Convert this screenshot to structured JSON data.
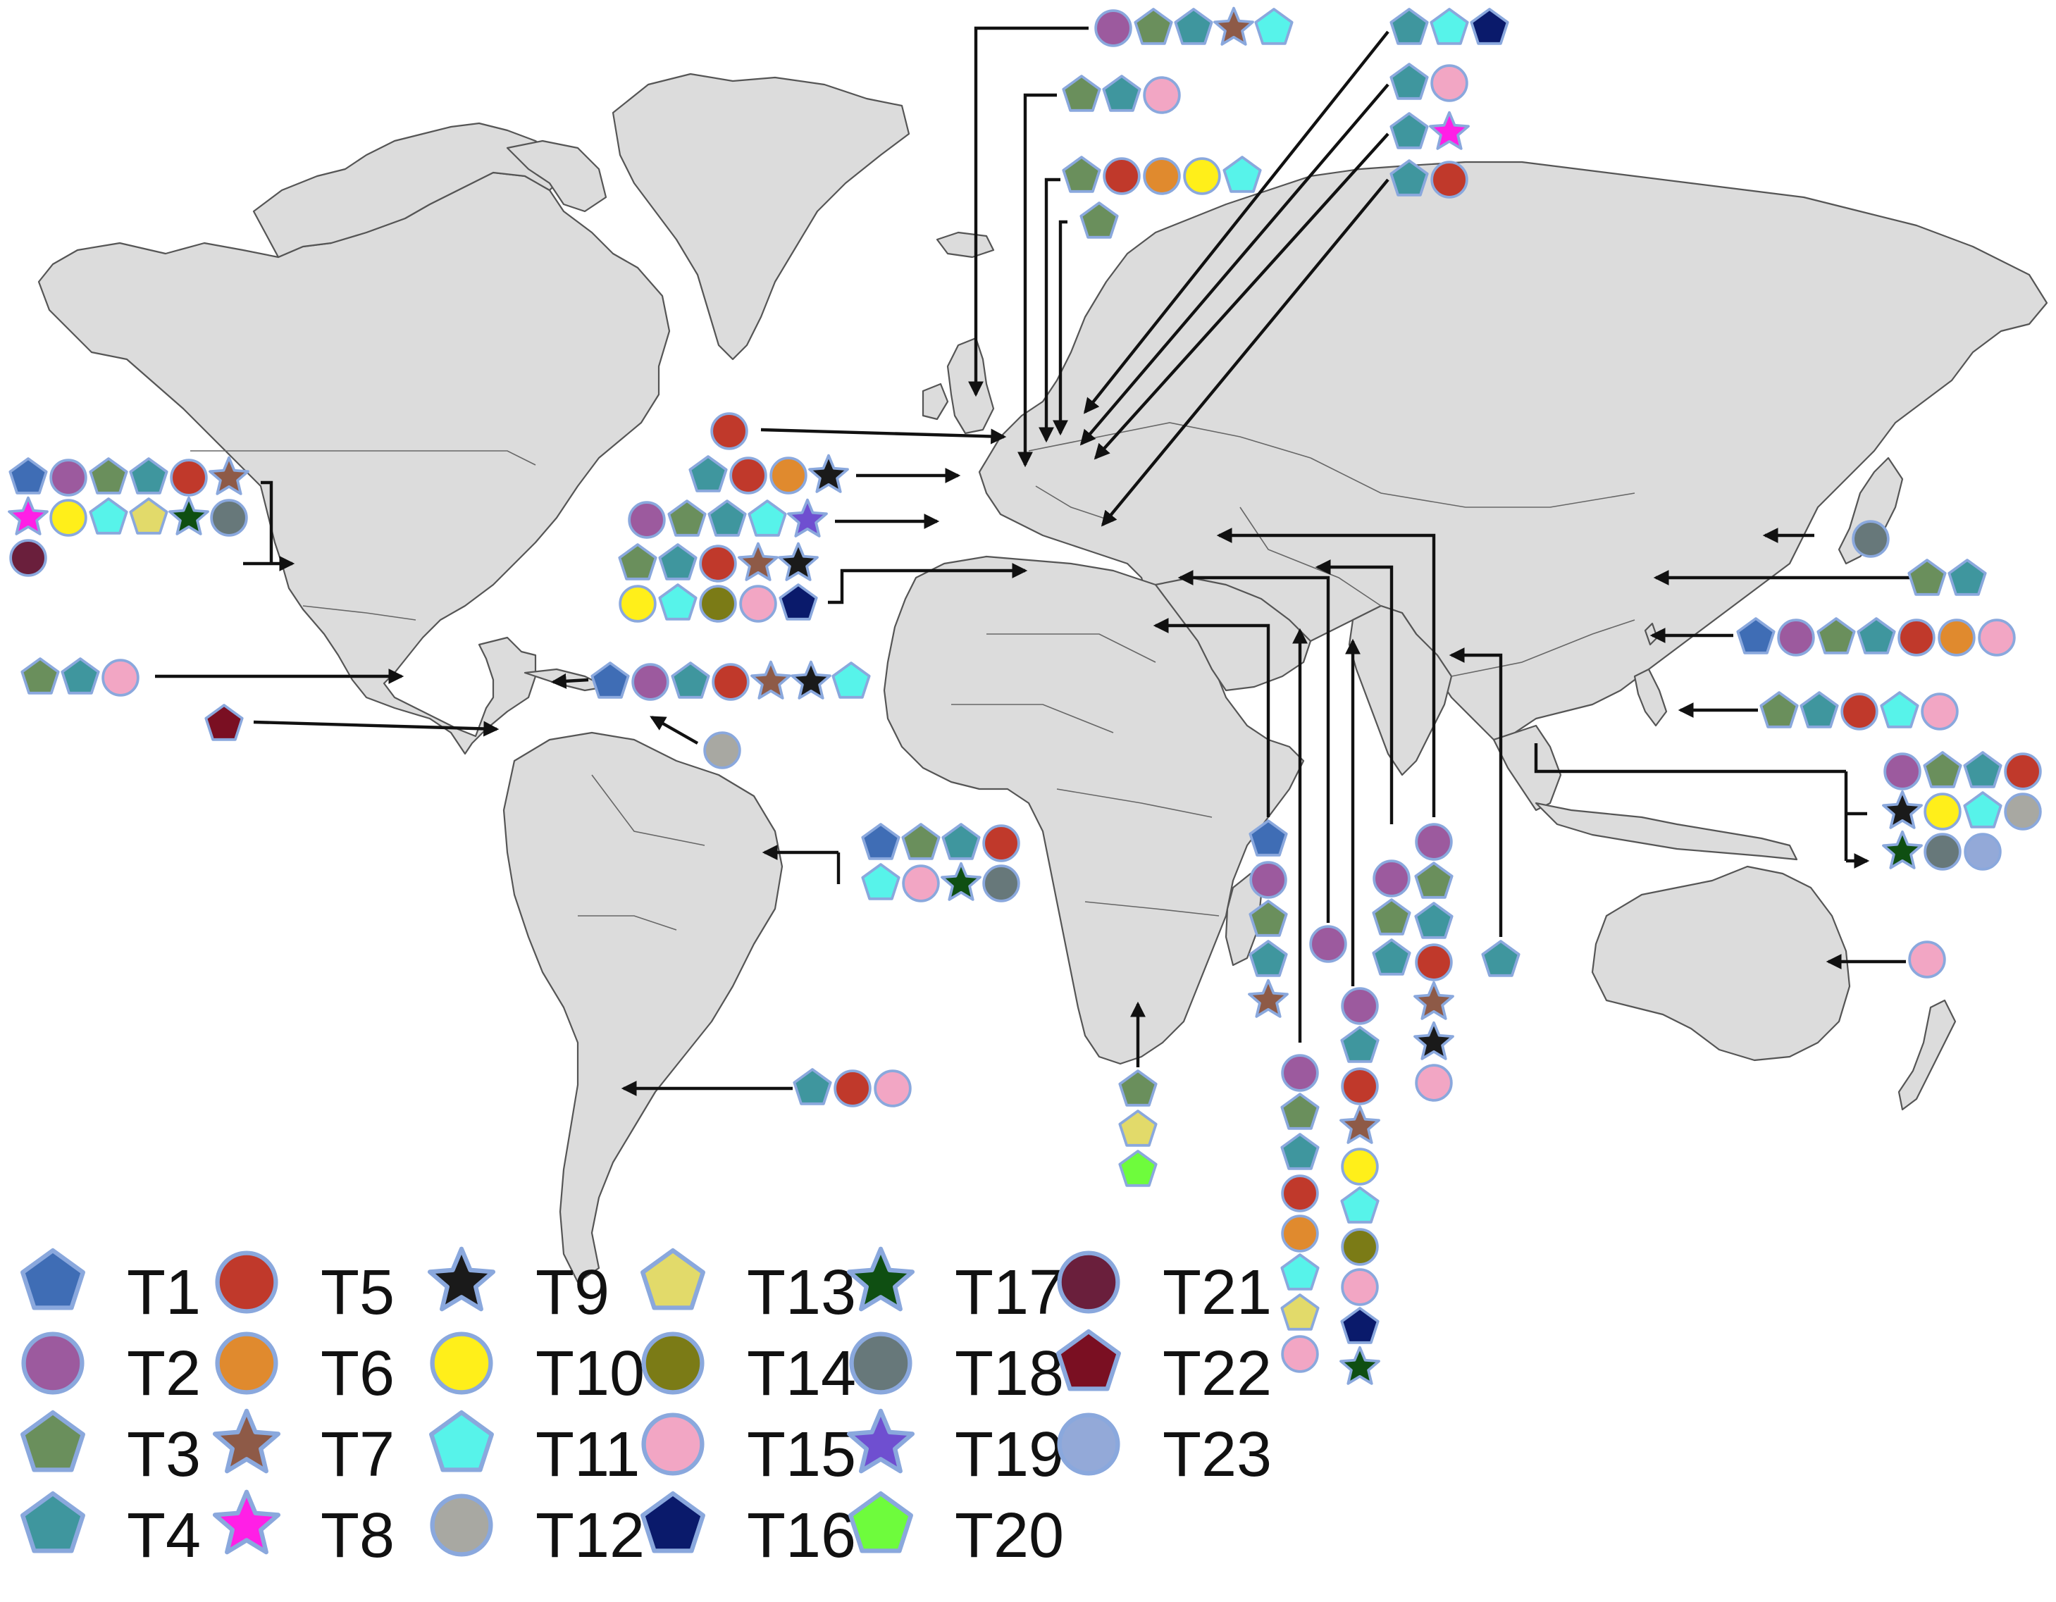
{
  "colors": {
    "land": "#dcdcdc",
    "border": "#555555",
    "arrow": "#111111",
    "symbol_outline": "#8aa8dd"
  },
  "types": [
    {
      "id": "T1",
      "label": "T1",
      "shape": "pentagon",
      "color": "#3f6db5"
    },
    {
      "id": "T2",
      "label": "T2",
      "shape": "circle",
      "color": "#9c5a9e"
    },
    {
      "id": "T3",
      "label": "T3",
      "shape": "pentagon",
      "color": "#6a8f5c"
    },
    {
      "id": "T4",
      "label": "T4",
      "shape": "pentagon",
      "color": "#3f969e"
    },
    {
      "id": "T5",
      "label": "T5",
      "shape": "circle",
      "color": "#c0392b"
    },
    {
      "id": "T6",
      "label": "T6",
      "shape": "circle",
      "color": "#e08a2e"
    },
    {
      "id": "T7",
      "label": "T7",
      "shape": "star",
      "color": "#8e5a47"
    },
    {
      "id": "T8",
      "label": "T8",
      "shape": "star",
      "color": "#ff1fe6"
    },
    {
      "id": "T9",
      "label": "T9",
      "shape": "star",
      "color": "#1a1a1a"
    },
    {
      "id": "T10",
      "label": "T10",
      "shape": "circle",
      "color": "#ffef1a"
    },
    {
      "id": "T11",
      "label": "T11",
      "shape": "pentagon",
      "color": "#57f3ea"
    },
    {
      "id": "T12",
      "label": "T12",
      "shape": "circle",
      "color": "#a8a8a2"
    },
    {
      "id": "T13",
      "label": "T13",
      "shape": "pentagon",
      "color": "#e2da6a"
    },
    {
      "id": "T14",
      "label": "T14",
      "shape": "circle",
      "color": "#7b7b16"
    },
    {
      "id": "T15",
      "label": "T15",
      "shape": "circle",
      "color": "#f2a6c4"
    },
    {
      "id": "T16",
      "label": "T16",
      "shape": "pentagon",
      "color": "#0a1a6b"
    },
    {
      "id": "T17",
      "label": "T17",
      "shape": "star",
      "color": "#0f4f12"
    },
    {
      "id": "T18",
      "label": "T18",
      "shape": "circle",
      "color": "#67787a"
    },
    {
      "id": "T19",
      "label": "T19",
      "shape": "star",
      "color": "#6f4fd0"
    },
    {
      "id": "T20",
      "label": "T20",
      "shape": "pentagon",
      "color": "#6efc3c"
    },
    {
      "id": "T21",
      "label": "T21",
      "shape": "circle",
      "color": "#6a1f3c"
    },
    {
      "id": "T22",
      "label": "T22",
      "shape": "pentagon",
      "color": "#7a0f22"
    },
    {
      "id": "T23",
      "label": "T23",
      "shape": "circle",
      "color": "#93a9d8"
    }
  ],
  "country_groups": [
    {
      "name": "united-kingdom",
      "types": [
        "T2",
        "T3",
        "T4",
        "T7",
        "T11"
      ]
    },
    {
      "name": "norway",
      "types": [
        "T3",
        "T4",
        "T15"
      ]
    },
    {
      "name": "denmark-germany",
      "types": [
        "T3",
        "T5",
        "T6",
        "T10",
        "T11"
      ]
    },
    {
      "name": "sweden",
      "types": [
        "T3"
      ]
    },
    {
      "name": "russia",
      "types": [
        "T4",
        "T11",
        "T16"
      ]
    },
    {
      "name": "poland",
      "types": [
        "T4",
        "T15"
      ]
    },
    {
      "name": "czechia",
      "types": [
        "T4",
        "T8"
      ]
    },
    {
      "name": "hungary",
      "types": [
        "T4",
        "T5"
      ]
    },
    {
      "name": "netherlands",
      "types": [
        "T5"
      ]
    },
    {
      "name": "france",
      "types": [
        "T4",
        "T5",
        "T6",
        "T9"
      ]
    },
    {
      "name": "spain",
      "types": [
        "T2",
        "T3",
        "T4",
        "T11",
        "T19"
      ]
    },
    {
      "name": "italy",
      "types": [
        "T3",
        "T4",
        "T5",
        "T7",
        "T9",
        "T10",
        "T11",
        "T14",
        "T15",
        "T16"
      ]
    },
    {
      "name": "usa",
      "types": [
        "T1",
        "T2",
        "T3",
        "T4",
        "T5",
        "T7",
        "T8",
        "T10",
        "T11",
        "T13",
        "T17",
        "T18",
        "T21"
      ]
    },
    {
      "name": "mexico",
      "types": [
        "T3",
        "T4",
        "T15"
      ]
    },
    {
      "name": "colombia",
      "types": [
        "T22"
      ]
    },
    {
      "name": "cuba",
      "types": [
        "T1",
        "T2",
        "T4",
        "T5",
        "T7",
        "T9",
        "T11"
      ]
    },
    {
      "name": "caribbean",
      "types": [
        "T12"
      ]
    },
    {
      "name": "brazil",
      "types": [
        "T1",
        "T3",
        "T4",
        "T5",
        "T11",
        "T15",
        "T17",
        "T18"
      ]
    },
    {
      "name": "argentina",
      "types": [
        "T4",
        "T5",
        "T15"
      ]
    },
    {
      "name": "south-africa",
      "types": [
        "T3",
        "T13",
        "T20"
      ]
    },
    {
      "name": "egypt",
      "types": [
        "T1",
        "T2",
        "T3",
        "T4",
        "T7"
      ]
    },
    {
      "name": "saudi-arabia",
      "types": [
        "T2"
      ]
    },
    {
      "name": "iran",
      "types": [
        "T2",
        "T3",
        "T4",
        "T5",
        "T6",
        "T11",
        "T13",
        "T15"
      ]
    },
    {
      "name": "iraq",
      "types": [
        "T2",
        "T4",
        "T5",
        "T7",
        "T10",
        "T11",
        "T14",
        "T15",
        "T16",
        "T17"
      ]
    },
    {
      "name": "pakistan",
      "types": [
        "T2",
        "T3",
        "T4"
      ]
    },
    {
      "name": "turkey",
      "types": [
        "T2",
        "T3",
        "T4",
        "T5",
        "T7",
        "T9",
        "T15"
      ]
    },
    {
      "name": "bangladesh",
      "types": [
        "T4"
      ]
    },
    {
      "name": "japan",
      "types": [
        "T18"
      ]
    },
    {
      "name": "china",
      "types": [
        "T3",
        "T4"
      ]
    },
    {
      "name": "taiwan",
      "types": [
        "T1",
        "T2",
        "T3",
        "T4",
        "T5",
        "T6",
        "T15"
      ]
    },
    {
      "name": "philippines",
      "types": [
        "T3",
        "T4",
        "T5",
        "T11",
        "T15"
      ]
    },
    {
      "name": "southeast-asia",
      "types": [
        "T2",
        "T3",
        "T4",
        "T5",
        "T9",
        "T10",
        "T11",
        "T12",
        "T17",
        "T18",
        "T23"
      ]
    },
    {
      "name": "australia",
      "types": [
        "T15"
      ]
    }
  ]
}
